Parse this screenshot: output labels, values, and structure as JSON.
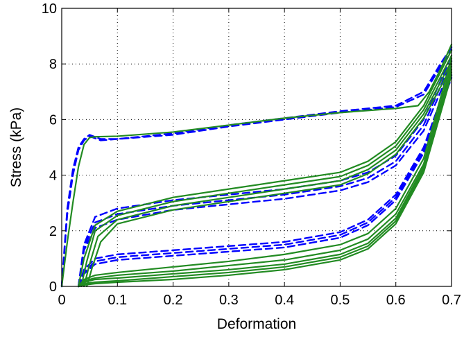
{
  "chart_data": {
    "type": "line",
    "title": "",
    "xlabel": "Deformation",
    "ylabel": "Stress (kPa)",
    "xlim": [
      0,
      0.7
    ],
    "ylim": [
      0,
      10
    ],
    "xticks": [
      0,
      0.1,
      0.2,
      0.3,
      0.4,
      0.5,
      0.6,
      0.7
    ],
    "xtick_labels": [
      "0",
      "0.1",
      "0.2",
      "0.3",
      "0.4",
      "0.5",
      "0.6",
      "0.7"
    ],
    "yticks": [
      0,
      2,
      4,
      6,
      8,
      10
    ],
    "ytick_labels": [
      "0",
      "2",
      "4",
      "6",
      "8",
      "10"
    ],
    "grid": true,
    "legend": "none",
    "series": [
      {
        "color": "#0000ff",
        "style": "dashed",
        "x": [
          0.0,
          0.01,
          0.02,
          0.03,
          0.04,
          0.05,
          0.07,
          0.1,
          0.2,
          0.3,
          0.4,
          0.5,
          0.6,
          0.65,
          0.68,
          0.7
        ],
        "y": [
          0.0,
          2.8,
          4.2,
          5.0,
          5.3,
          5.45,
          5.3,
          5.3,
          5.5,
          5.8,
          6.05,
          6.3,
          6.5,
          7.0,
          8.0,
          8.6
        ]
      },
      {
        "color": "#0000ff",
        "style": "dashed",
        "x": [
          0.0,
          0.01,
          0.02,
          0.03,
          0.04,
          0.05,
          0.07,
          0.1,
          0.2,
          0.3,
          0.4,
          0.5,
          0.6,
          0.65,
          0.68,
          0.7
        ],
        "y": [
          0.0,
          2.6,
          4.0,
          4.9,
          5.25,
          5.4,
          5.25,
          5.3,
          5.45,
          5.75,
          6.0,
          6.25,
          6.45,
          6.9,
          7.9,
          8.5
        ]
      },
      {
        "color": "#0000ff",
        "style": "dashed",
        "x": [
          0.03,
          0.04,
          0.06,
          0.1,
          0.2,
          0.3,
          0.4,
          0.5,
          0.55,
          0.6,
          0.65,
          0.7
        ],
        "y": [
          0.0,
          1.5,
          2.5,
          2.8,
          3.1,
          3.3,
          3.5,
          3.8,
          4.1,
          4.7,
          6.0,
          8.3
        ]
      },
      {
        "color": "#0000ff",
        "style": "dashed",
        "x": [
          0.03,
          0.04,
          0.06,
          0.1,
          0.2,
          0.3,
          0.4,
          0.5,
          0.55,
          0.6,
          0.65,
          0.7
        ],
        "y": [
          0.0,
          1.4,
          2.3,
          2.6,
          2.9,
          3.1,
          3.3,
          3.6,
          3.9,
          4.5,
          5.8,
          8.1
        ]
      },
      {
        "color": "#0000ff",
        "style": "dashed",
        "x": [
          0.03,
          0.04,
          0.06,
          0.1,
          0.2,
          0.3,
          0.4,
          0.5,
          0.55,
          0.6,
          0.65,
          0.7
        ],
        "y": [
          0.0,
          1.3,
          2.1,
          2.4,
          2.75,
          2.95,
          3.15,
          3.45,
          3.75,
          4.35,
          5.6,
          7.9
        ]
      },
      {
        "color": "#0000ff",
        "style": "dashed",
        "x": [
          0.03,
          0.04,
          0.06,
          0.1,
          0.2,
          0.3,
          0.4,
          0.5,
          0.55,
          0.6,
          0.65,
          0.7
        ],
        "y": [
          0.0,
          0.6,
          1.0,
          1.15,
          1.3,
          1.45,
          1.6,
          1.95,
          2.4,
          3.3,
          5.0,
          7.8
        ]
      },
      {
        "color": "#0000ff",
        "style": "dashed",
        "x": [
          0.03,
          0.04,
          0.06,
          0.1,
          0.2,
          0.3,
          0.4,
          0.5,
          0.55,
          0.6,
          0.65,
          0.7
        ],
        "y": [
          0.0,
          0.5,
          0.9,
          1.05,
          1.2,
          1.35,
          1.5,
          1.85,
          2.3,
          3.2,
          4.9,
          7.6
        ]
      },
      {
        "color": "#0000ff",
        "style": "dashed",
        "x": [
          0.03,
          0.04,
          0.06,
          0.1,
          0.2,
          0.3,
          0.4,
          0.5,
          0.55,
          0.6,
          0.65,
          0.7
        ],
        "y": [
          0.0,
          0.45,
          0.8,
          0.95,
          1.1,
          1.25,
          1.4,
          1.75,
          2.2,
          3.1,
          4.8,
          7.5
        ]
      },
      {
        "color": "#228b22",
        "style": "solid",
        "x": [
          0.0,
          0.01,
          0.02,
          0.03,
          0.04,
          0.05,
          0.06,
          0.1,
          0.2,
          0.3,
          0.4,
          0.5,
          0.6,
          0.64,
          0.66,
          0.68,
          0.7
        ],
        "y": [
          0.0,
          1.6,
          3.0,
          4.3,
          5.1,
          5.35,
          5.38,
          5.4,
          5.55,
          5.8,
          6.05,
          6.25,
          6.4,
          6.5,
          7.0,
          7.8,
          8.7
        ]
      },
      {
        "color": "#228b22",
        "style": "solid",
        "x": [
          0.03,
          0.04,
          0.06,
          0.1,
          0.2,
          0.3,
          0.4,
          0.5,
          0.55,
          0.6,
          0.65,
          0.7
        ],
        "y": [
          0.0,
          1.0,
          2.2,
          2.7,
          3.2,
          3.5,
          3.8,
          4.1,
          4.5,
          5.2,
          6.5,
          8.5
        ]
      },
      {
        "color": "#228b22",
        "style": "solid",
        "x": [
          0.035,
          0.045,
          0.06,
          0.1,
          0.2,
          0.3,
          0.4,
          0.5,
          0.55,
          0.6,
          0.65,
          0.7
        ],
        "y": [
          0.0,
          0.9,
          2.0,
          2.55,
          3.05,
          3.35,
          3.65,
          3.95,
          4.35,
          5.05,
          6.35,
          8.3
        ]
      },
      {
        "color": "#228b22",
        "style": "solid",
        "x": [
          0.04,
          0.05,
          0.065,
          0.1,
          0.2,
          0.3,
          0.4,
          0.5,
          0.55,
          0.6,
          0.65,
          0.7
        ],
        "y": [
          0.0,
          0.8,
          1.8,
          2.4,
          2.9,
          3.2,
          3.5,
          3.8,
          4.2,
          4.9,
          6.2,
          8.1
        ]
      },
      {
        "color": "#228b22",
        "style": "solid",
        "x": [
          0.045,
          0.055,
          0.07,
          0.1,
          0.2,
          0.3,
          0.4,
          0.5,
          0.55,
          0.6,
          0.65,
          0.7
        ],
        "y": [
          0.0,
          0.7,
          1.6,
          2.25,
          2.75,
          3.05,
          3.35,
          3.65,
          4.05,
          4.75,
          6.05,
          7.9
        ]
      },
      {
        "color": "#228b22",
        "style": "solid",
        "x": [
          0.03,
          0.04,
          0.06,
          0.1,
          0.2,
          0.3,
          0.4,
          0.5,
          0.55,
          0.6,
          0.65,
          0.7
        ],
        "y": [
          0.0,
          0.25,
          0.4,
          0.5,
          0.7,
          0.9,
          1.15,
          1.5,
          1.9,
          2.8,
          4.6,
          8.2
        ]
      },
      {
        "color": "#228b22",
        "style": "solid",
        "x": [
          0.03,
          0.04,
          0.06,
          0.1,
          0.2,
          0.3,
          0.4,
          0.5,
          0.55,
          0.6,
          0.65,
          0.7
        ],
        "y": [
          0.0,
          0.2,
          0.3,
          0.4,
          0.55,
          0.75,
          0.95,
          1.3,
          1.7,
          2.6,
          4.4,
          8.0
        ]
      },
      {
        "color": "#228b22",
        "style": "solid",
        "x": [
          0.03,
          0.04,
          0.06,
          0.1,
          0.2,
          0.3,
          0.4,
          0.5,
          0.55,
          0.6,
          0.65,
          0.7
        ],
        "y": [
          0.0,
          0.15,
          0.25,
          0.3,
          0.45,
          0.6,
          0.8,
          1.15,
          1.55,
          2.45,
          4.3,
          7.8
        ]
      },
      {
        "color": "#228b22",
        "style": "solid",
        "x": [
          0.03,
          0.04,
          0.06,
          0.1,
          0.2,
          0.3,
          0.4,
          0.5,
          0.55,
          0.6,
          0.65,
          0.7
        ],
        "y": [
          0.0,
          0.1,
          0.15,
          0.2,
          0.35,
          0.5,
          0.7,
          1.05,
          1.45,
          2.35,
          4.2,
          7.7
        ]
      },
      {
        "color": "#228b22",
        "style": "solid",
        "x": [
          0.03,
          0.04,
          0.06,
          0.1,
          0.2,
          0.3,
          0.4,
          0.5,
          0.55,
          0.6,
          0.65,
          0.7
        ],
        "y": [
          0.0,
          0.05,
          0.1,
          0.15,
          0.25,
          0.4,
          0.6,
          0.95,
          1.35,
          2.25,
          4.1,
          7.6
        ]
      }
    ]
  }
}
